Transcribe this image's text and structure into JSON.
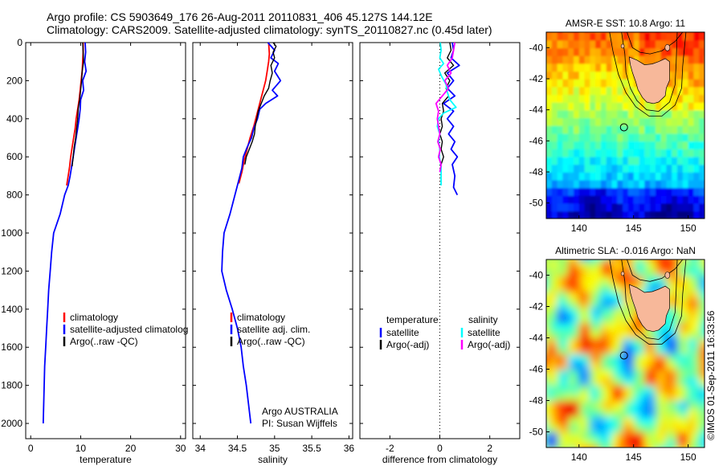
{
  "header": {
    "line1": "Argo profile: CS 5903649_176 26-Aug-2011 20110831_406 45.127S 144.12E",
    "line2": "Climatology: CARS2009. Satellite-adjusted climatology: synTS_20110827.nc (0.45d later)"
  },
  "credit": "Argo AUSTRALIA",
  "pi": "PI: Susan Wijffels",
  "stamp": "©IMOS 01-Sep-2011 16:33:56",
  "colors": {
    "climatology": "#ff0000",
    "satellite": "#0000ff",
    "argo": "#000000",
    "sal_satellite": "#00ffff",
    "sal_argo": "#ff00ff",
    "land": "#f7b89a"
  },
  "chart_data": [
    {
      "type": "line",
      "id": "temperature",
      "xlabel": "temperature",
      "xlim": [
        -1,
        31
      ],
      "ylim": [
        2080,
        0
      ],
      "xticks": [
        0,
        10,
        20,
        30
      ],
      "yticks": [
        0,
        200,
        400,
        600,
        800,
        1000,
        1200,
        1400,
        1600,
        1800,
        2000
      ],
      "legend": [
        "climatology",
        "satellite-adjusted climatolog",
        "Argo(..raw -QC)"
      ],
      "series": [
        {
          "name": "climatology",
          "color": "#ff0000",
          "points": [
            [
              10.5,
              0
            ],
            [
              10.5,
              50
            ],
            [
              10.4,
              100
            ],
            [
              10.3,
              150
            ],
            [
              10.1,
              200
            ],
            [
              9.9,
              250
            ],
            [
              9.7,
              300
            ],
            [
              9.4,
              350
            ],
            [
              9.1,
              400
            ],
            [
              8.9,
              450
            ],
            [
              8.6,
              500
            ],
            [
              8.3,
              550
            ],
            [
              8.0,
              600
            ],
            [
              7.8,
              650
            ],
            [
              7.5,
              700
            ],
            [
              7.2,
              750
            ]
          ]
        },
        {
          "name": "satellite-adjusted climatolog",
          "color": "#0000ff",
          "points": [
            [
              10.9,
              0
            ],
            [
              11.0,
              50
            ],
            [
              10.8,
              100
            ],
            [
              11.1,
              150
            ],
            [
              10.4,
              200
            ],
            [
              10.6,
              250
            ],
            [
              10.0,
              300
            ],
            [
              9.9,
              350
            ],
            [
              9.7,
              400
            ],
            [
              9.4,
              450
            ],
            [
              9.1,
              500
            ],
            [
              8.8,
              550
            ],
            [
              8.5,
              600
            ],
            [
              8.2,
              650
            ],
            [
              7.9,
              700
            ],
            [
              7.5,
              750
            ],
            [
              6.8,
              800
            ],
            [
              5.9,
              900
            ],
            [
              4.6,
              1000
            ],
            [
              4.2,
              1100
            ],
            [
              3.9,
              1200
            ],
            [
              3.6,
              1300
            ],
            [
              3.4,
              1400
            ],
            [
              3.2,
              1500
            ],
            [
              3.0,
              1600
            ],
            [
              2.8,
              1700
            ],
            [
              2.7,
              1800
            ],
            [
              2.6,
              1900
            ],
            [
              2.5,
              2000
            ]
          ]
        },
        {
          "name": "Argo(..raw -QC)",
          "color": "#000000",
          "points": [
            [
              10.4,
              0
            ],
            [
              10.5,
              50
            ],
            [
              10.6,
              100
            ],
            [
              10.3,
              150
            ],
            [
              10.2,
              200
            ],
            [
              10.0,
              250
            ],
            [
              9.8,
              300
            ],
            [
              9.5,
              350
            ],
            [
              9.4,
              400
            ],
            [
              9.2,
              450
            ],
            [
              9.0,
              500
            ],
            [
              8.7,
              550
            ],
            [
              8.5,
              600
            ],
            [
              8.3,
              650
            ]
          ]
        }
      ]
    },
    {
      "type": "line",
      "id": "salinity",
      "xlabel": "salinity",
      "xlim": [
        33.9,
        36.05
      ],
      "ylim": [
        2080,
        0
      ],
      "xticks": [
        34,
        34.5,
        35,
        35.5,
        36
      ],
      "xticklabels": [
        "34",
        "34.5",
        "35",
        "35.5",
        "36"
      ],
      "legend": [
        "climatology",
        "satellite adj. clim.",
        "Argo(..raw -QC)"
      ],
      "series": [
        {
          "name": "climatology",
          "color": "#ff0000",
          "points": [
            [
              34.92,
              0
            ],
            [
              34.93,
              60
            ],
            [
              34.92,
              100
            ],
            [
              34.9,
              150
            ],
            [
              34.88,
              200
            ],
            [
              34.84,
              260
            ],
            [
              34.8,
              320
            ],
            [
              34.76,
              380
            ],
            [
              34.72,
              440
            ],
            [
              34.67,
              500
            ],
            [
              34.63,
              560
            ],
            [
              34.59,
              620
            ],
            [
              34.56,
              680
            ],
            [
              34.52,
              740
            ]
          ]
        },
        {
          "name": "satellite adj. clim.",
          "color": "#0000ff",
          "points": [
            [
              34.91,
              0
            ],
            [
              35.0,
              40
            ],
            [
              34.95,
              80
            ],
            [
              35.05,
              110
            ],
            [
              35.0,
              150
            ],
            [
              35.08,
              200
            ],
            [
              34.97,
              250
            ],
            [
              35.04,
              280
            ],
            [
              34.88,
              320
            ],
            [
              34.8,
              350
            ],
            [
              34.77,
              400
            ],
            [
              34.72,
              450
            ],
            [
              34.69,
              500
            ],
            [
              34.63,
              550
            ],
            [
              34.58,
              600
            ],
            [
              34.56,
              660
            ],
            [
              34.52,
              720
            ],
            [
              34.48,
              780
            ],
            [
              34.4,
              900
            ],
            [
              34.32,
              1000
            ],
            [
              34.3,
              1100
            ],
            [
              34.29,
              1200
            ],
            [
              34.35,
              1300
            ],
            [
              34.43,
              1400
            ],
            [
              34.5,
              1500
            ],
            [
              34.55,
              1600
            ],
            [
              34.58,
              1700
            ],
            [
              34.62,
              1800
            ],
            [
              34.65,
              1900
            ],
            [
              34.68,
              2000
            ]
          ]
        },
        {
          "name": "Argo(..raw -QC)",
          "color": "#000000",
          "points": [
            [
              34.98,
              0
            ],
            [
              35.02,
              20
            ],
            [
              34.98,
              50
            ],
            [
              35.0,
              80
            ],
            [
              34.95,
              120
            ],
            [
              34.97,
              160
            ],
            [
              34.94,
              200
            ],
            [
              34.92,
              240
            ],
            [
              34.86,
              280
            ],
            [
              34.82,
              320
            ],
            [
              34.78,
              360
            ],
            [
              34.76,
              400
            ],
            [
              34.74,
              440
            ],
            [
              34.73,
              480
            ],
            [
              34.7,
              520
            ],
            [
              34.66,
              560
            ],
            [
              34.62,
              600
            ],
            [
              34.6,
              640
            ]
          ]
        }
      ]
    },
    {
      "type": "line",
      "id": "difference",
      "xlabel": "difference from climatology",
      "xlim": [
        -3.2,
        3.2
      ],
      "ylim": [
        2080,
        0
      ],
      "xticks": [
        -2,
        0,
        2
      ],
      "xticklabels": [
        "-2",
        "0",
        "2"
      ],
      "legend_temperature": {
        "heading": "temperature",
        "items": [
          "satellite",
          "Argo(-adj)"
        ]
      },
      "legend_salinity": {
        "heading": "salinity",
        "items": [
          "satellite",
          "Argo(-adj)"
        ]
      },
      "series": [
        {
          "name": "temperature satellite",
          "color": "#0000ff",
          "points": [
            [
              0.5,
              0
            ],
            [
              0.55,
              40
            ],
            [
              0.45,
              80
            ],
            [
              0.78,
              120
            ],
            [
              0.3,
              160
            ],
            [
              0.55,
              200
            ],
            [
              0.3,
              240
            ],
            [
              0.6,
              280
            ],
            [
              0.15,
              320
            ],
            [
              0.55,
              360
            ],
            [
              0.3,
              400
            ],
            [
              0.55,
              440
            ],
            [
              0.35,
              480
            ],
            [
              0.6,
              520
            ],
            [
              0.45,
              560
            ],
            [
              0.7,
              600
            ],
            [
              0.5,
              640
            ],
            [
              0.6,
              700
            ],
            [
              0.55,
              760
            ],
            [
              0.7,
              800
            ]
          ]
        },
        {
          "name": "temperature Argo(-adj)",
          "color": "#000000",
          "points": [
            [
              0.4,
              0
            ],
            [
              0.45,
              40
            ],
            [
              0.3,
              80
            ],
            [
              0.55,
              120
            ],
            [
              0.2,
              160
            ],
            [
              0.4,
              200
            ],
            [
              0.25,
              240
            ],
            [
              0.35,
              280
            ],
            [
              0.1,
              320
            ],
            [
              0.15,
              360
            ],
            [
              0.05,
              400
            ],
            [
              0.1,
              440
            ],
            [
              0.0,
              480
            ],
            [
              0.1,
              520
            ],
            [
              0.05,
              560
            ],
            [
              0.15,
              600
            ],
            [
              0.05,
              640
            ]
          ]
        },
        {
          "name": "salinity satellite",
          "color": "#00ffff",
          "points": [
            [
              0.02,
              0
            ],
            [
              0.05,
              40
            ],
            [
              0.0,
              80
            ],
            [
              0.15,
              110
            ],
            [
              -0.05,
              140
            ],
            [
              0.08,
              180
            ],
            [
              0.25,
              220
            ],
            [
              0.3,
              260
            ],
            [
              0.4,
              300
            ],
            [
              0.65,
              340
            ],
            [
              0.15,
              370
            ],
            [
              -0.05,
              400
            ],
            [
              -0.1,
              440
            ],
            [
              0.0,
              480
            ],
            [
              -0.05,
              520
            ],
            [
              0.0,
              560
            ],
            [
              -0.02,
              600
            ],
            [
              0.05,
              650
            ],
            [
              0.05,
              700
            ],
            [
              0.05,
              750
            ]
          ]
        },
        {
          "name": "salinity Argo(-adj)",
          "color": "#ff00ff",
          "points": [
            [
              0.6,
              0
            ],
            [
              0.55,
              40
            ],
            [
              0.5,
              80
            ],
            [
              0.3,
              120
            ],
            [
              0.45,
              160
            ],
            [
              0.2,
              200
            ],
            [
              0.35,
              240
            ],
            [
              0.1,
              280
            ],
            [
              -0.15,
              320
            ],
            [
              -0.05,
              360
            ],
            [
              -0.1,
              400
            ],
            [
              -0.05,
              440
            ],
            [
              0.0,
              480
            ],
            [
              -0.08,
              520
            ],
            [
              0.02,
              560
            ],
            [
              -0.05,
              600
            ],
            [
              0.05,
              640
            ],
            [
              0.0,
              680
            ]
          ]
        }
      ]
    },
    {
      "type": "heatmap",
      "id": "sst_map",
      "title": "AMSR-E SST: 10.8 Argo: 11",
      "xlim": [
        137,
        151.5
      ],
      "ylim": [
        -51,
        -39
      ],
      "xticks": [
        140,
        145,
        150
      ],
      "yticks": [
        -40,
        -42,
        -44,
        -46,
        -48,
        -50
      ],
      "argo_position": [
        144.12,
        -45.127
      ],
      "land": "Tasmania"
    },
    {
      "type": "heatmap",
      "id": "sla_map",
      "title": "Altimetric SLA: -0.016 Argo: NaN",
      "xlim": [
        137,
        151.5
      ],
      "ylim": [
        -51,
        -39
      ],
      "xticks": [
        140,
        145,
        150
      ],
      "yticks": [
        -40,
        -42,
        -44,
        -46,
        -48,
        -50
      ],
      "argo_position": [
        144.12,
        -45.127
      ],
      "land": "Tasmania"
    }
  ]
}
